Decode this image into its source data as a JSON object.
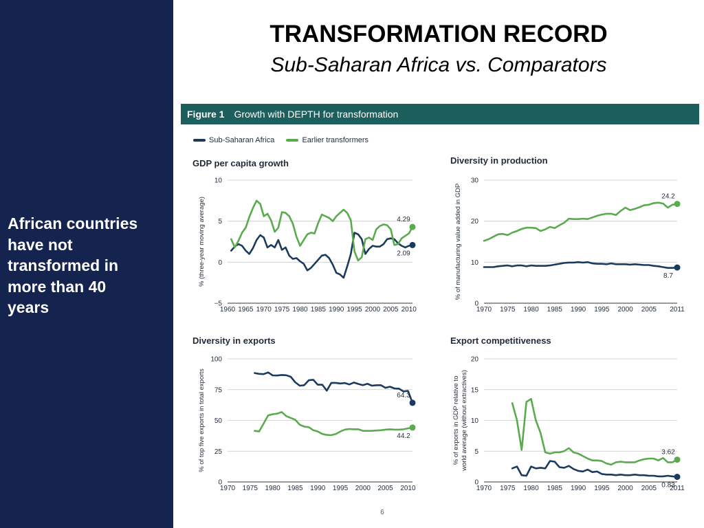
{
  "slide": {
    "title": "TRANSFORMATION RECORD",
    "subtitle": "Sub-Saharan Africa vs. Comparators",
    "sidebar_text": "African countries\nhave not\ntransformed in\nmore than 40\nyears",
    "page_number": "6"
  },
  "figure": {
    "label": "Figure 1",
    "title": "Growth with DEPTH for transformation"
  },
  "legend": {
    "items": [
      {
        "label": "Sub-Saharan Africa",
        "color": "#1b3a5c"
      },
      {
        "label": "Earlier transformers",
        "color": "#5aaa4e"
      }
    ]
  },
  "colors": {
    "ssa": "#1b3a5c",
    "earlier": "#5aaa4e",
    "sidebar": "#15244f",
    "header": "#1c5f5c",
    "grid": "#c8c8c8"
  },
  "chart_data": [
    {
      "type": "line",
      "title": "GDP per capita growth",
      "ylabel": "% (three-year moving average)",
      "xlabel": "",
      "xlim": [
        1960,
        2011
      ],
      "ylim": [
        -5,
        10
      ],
      "xticks": [
        1960,
        1965,
        1970,
        1975,
        1980,
        1985,
        1990,
        1995,
        2000,
        2005,
        2010
      ],
      "yticks": [
        -5,
        0,
        5,
        10
      ],
      "ytick_labels": [
        "−5",
        "0",
        "5",
        "10"
      ],
      "grid": true,
      "series": [
        {
          "key": "ssa",
          "name": "Sub-Saharan Africa",
          "x": [
            1961,
            1962,
            1963,
            1964,
            1965,
            1966,
            1967,
            1968,
            1969,
            1970,
            1971,
            1972,
            1973,
            1974,
            1975,
            1976,
            1977,
            1978,
            1979,
            1980,
            1981,
            1982,
            1983,
            1984,
            1985,
            1986,
            1987,
            1988,
            1989,
            1990,
            1991,
            1992,
            1993,
            1994,
            1995,
            1996,
            1997,
            1998,
            1999,
            2000,
            2001,
            2002,
            2003,
            2004,
            2005,
            2006,
            2007,
            2008,
            2009,
            2010,
            2011
          ],
          "values": [
            1.4,
            1.9,
            2.2,
            2.0,
            1.4,
            1.0,
            1.7,
            2.7,
            3.3,
            3.0,
            1.8,
            2.1,
            1.8,
            2.7,
            1.5,
            1.8,
            0.8,
            0.4,
            0.5,
            0.1,
            -0.2,
            -1.0,
            -0.7,
            -0.2,
            0.3,
            0.8,
            0.9,
            0.5,
            -0.3,
            -1.3,
            -1.5,
            -1.9,
            -0.5,
            1.0,
            3.6,
            3.4,
            2.8,
            1.0,
            1.6,
            2.0,
            1.9,
            1.9,
            2.2,
            2.8,
            2.9,
            2.8,
            2.3,
            2.0,
            1.8,
            2.0,
            2.09
          ],
          "end_label": "2.09"
        },
        {
          "key": "earlier",
          "name": "Earlier transformers",
          "x": [
            1961,
            1962,
            1963,
            1964,
            1965,
            1966,
            1967,
            1968,
            1969,
            1970,
            1971,
            1972,
            1973,
            1974,
            1975,
            1976,
            1977,
            1978,
            1979,
            1980,
            1981,
            1982,
            1983,
            1984,
            1985,
            1986,
            1987,
            1988,
            1989,
            1990,
            1991,
            1992,
            1993,
            1994,
            1995,
            1996,
            1997,
            1998,
            1999,
            2000,
            2001,
            2002,
            2003,
            2004,
            2005,
            2006,
            2007,
            2008,
            2009,
            2010,
            2011
          ],
          "values": [
            2.8,
            1.8,
            2.6,
            3.6,
            4.2,
            5.5,
            6.6,
            7.5,
            7.1,
            5.6,
            5.9,
            5.1,
            3.7,
            4.2,
            6.1,
            6.0,
            5.6,
            4.7,
            3.1,
            2.0,
            2.7,
            3.4,
            3.6,
            3.5,
            4.8,
            5.8,
            5.6,
            5.4,
            5.0,
            5.6,
            6.0,
            6.4,
            6.0,
            5.1,
            1.3,
            0.2,
            0.6,
            2.8,
            3.0,
            2.7,
            4.0,
            4.4,
            4.6,
            4.5,
            4.0,
            2.1,
            2.2,
            2.9,
            3.2,
            3.5,
            4.29
          ],
          "end_label": "4.29"
        }
      ]
    },
    {
      "type": "line",
      "title": "Diversity in production",
      "ylabel": "% of manufacturing value added in GDP",
      "xlabel": "",
      "xlim": [
        1970,
        2011
      ],
      "ylim": [
        0,
        30
      ],
      "xticks": [
        1970,
        1975,
        1980,
        1985,
        1990,
        1995,
        2000,
        2005,
        2011
      ],
      "yticks": [
        0,
        10,
        20,
        30
      ],
      "ytick_labels": [
        "0",
        "10",
        "20",
        "30"
      ],
      "grid": true,
      "series": [
        {
          "key": "ssa",
          "name": "Sub-Saharan Africa",
          "x": [
            1970,
            1971,
            1972,
            1973,
            1974,
            1975,
            1976,
            1977,
            1978,
            1979,
            1980,
            1981,
            1982,
            1983,
            1984,
            1985,
            1986,
            1987,
            1988,
            1989,
            1990,
            1991,
            1992,
            1993,
            1994,
            1995,
            1996,
            1997,
            1998,
            1999,
            2000,
            2001,
            2002,
            2003,
            2004,
            2005,
            2006,
            2007,
            2008,
            2009,
            2010,
            2011
          ],
          "values": [
            8.8,
            8.8,
            8.8,
            9.0,
            9.1,
            9.2,
            9.0,
            9.2,
            9.2,
            9.0,
            9.2,
            9.1,
            9.1,
            9.1,
            9.2,
            9.4,
            9.6,
            9.8,
            9.9,
            9.9,
            10.0,
            9.9,
            10.0,
            9.7,
            9.6,
            9.6,
            9.5,
            9.7,
            9.5,
            9.5,
            9.5,
            9.4,
            9.5,
            9.4,
            9.3,
            9.3,
            9.1,
            9.0,
            8.8,
            8.6,
            8.6,
            8.7
          ],
          "end_label": "8.7"
        },
        {
          "key": "earlier",
          "name": "Earlier transformers",
          "x": [
            1970,
            1971,
            1972,
            1973,
            1974,
            1975,
            1976,
            1977,
            1978,
            1979,
            1980,
            1981,
            1982,
            1983,
            1984,
            1985,
            1986,
            1987,
            1988,
            1989,
            1990,
            1991,
            1992,
            1993,
            1994,
            1995,
            1996,
            1997,
            1998,
            1999,
            2000,
            2001,
            2002,
            2003,
            2004,
            2005,
            2006,
            2007,
            2008,
            2009,
            2010,
            2011
          ],
          "values": [
            15.2,
            15.6,
            16.2,
            16.8,
            16.9,
            16.6,
            17.2,
            17.6,
            18.1,
            18.4,
            18.4,
            18.3,
            17.6,
            18.0,
            18.6,
            18.3,
            19.0,
            19.6,
            20.6,
            20.5,
            20.5,
            20.6,
            20.5,
            20.9,
            21.3,
            21.6,
            21.8,
            21.8,
            21.5,
            22.5,
            23.3,
            22.7,
            23.0,
            23.4,
            23.9,
            24.0,
            24.4,
            24.5,
            24.3,
            23.3,
            24.0,
            24.2
          ],
          "end_label": "24.2"
        }
      ]
    },
    {
      "type": "line",
      "title": "Diversity in exports",
      "ylabel": "% of top five exports in total exports",
      "xlabel": "",
      "xlim": [
        1970,
        2011
      ],
      "ylim": [
        0,
        100
      ],
      "xticks": [
        1970,
        1975,
        1980,
        1985,
        1990,
        1995,
        2000,
        2005,
        2010
      ],
      "yticks": [
        0,
        25,
        50,
        75,
        100
      ],
      "ytick_labels": [
        "0",
        "25",
        "50",
        "75",
        "100"
      ],
      "grid": true,
      "series": [
        {
          "key": "ssa",
          "name": "Sub-Saharan Africa",
          "x": [
            1976,
            1977,
            1978,
            1979,
            1980,
            1981,
            1982,
            1983,
            1984,
            1985,
            1986,
            1987,
            1988,
            1989,
            1990,
            1991,
            1992,
            1993,
            1994,
            1995,
            1996,
            1997,
            1998,
            1999,
            2000,
            2001,
            2002,
            2003,
            2004,
            2005,
            2006,
            2007,
            2008,
            2009,
            2010,
            2011
          ],
          "values": [
            88.5,
            87.8,
            87.6,
            89.0,
            86.6,
            86.5,
            86.9,
            86.7,
            85.5,
            81.0,
            78.2,
            78.6,
            82.6,
            83.0,
            79.0,
            79.0,
            74.2,
            80.5,
            80.5,
            80.0,
            80.4,
            79.2,
            80.8,
            79.6,
            78.6,
            79.8,
            78.2,
            78.6,
            78.6,
            76.5,
            77.4,
            76.0,
            75.8,
            73.5,
            74.0,
            64.3
          ],
          "end_label": "64.3"
        },
        {
          "key": "earlier",
          "name": "Earlier transformers",
          "x": [
            1976,
            1977,
            1978,
            1979,
            1980,
            1981,
            1982,
            1983,
            1984,
            1985,
            1986,
            1987,
            1988,
            1989,
            1990,
            1991,
            1992,
            1993,
            1994,
            1995,
            1996,
            1997,
            1998,
            1999,
            2000,
            2001,
            2002,
            2003,
            2004,
            2005,
            2006,
            2007,
            2008,
            2009,
            2010,
            2011
          ],
          "values": [
            41.5,
            41.0,
            47.5,
            54.0,
            55.0,
            55.5,
            56.8,
            53.5,
            52.0,
            50.5,
            46.5,
            45.0,
            44.5,
            42.0,
            41.0,
            39.0,
            38.2,
            38.0,
            39.0,
            41.0,
            42.5,
            43.0,
            42.8,
            42.8,
            41.5,
            41.5,
            41.5,
            41.8,
            42.0,
            42.5,
            42.8,
            42.5,
            42.5,
            42.8,
            43.5,
            44.2
          ],
          "end_label": "44.2"
        }
      ]
    },
    {
      "type": "line",
      "title": "Export competitiveness",
      "ylabel": "% of exports in GDP relative to world average (without extractives)",
      "xlabel": "",
      "xlim": [
        1970,
        2011
      ],
      "ylim": [
        0,
        20
      ],
      "xticks": [
        1970,
        1975,
        1980,
        1985,
        1990,
        1995,
        2000,
        2005,
        2011
      ],
      "yticks": [
        0,
        5,
        10,
        15,
        20
      ],
      "ytick_labels": [
        "0",
        "5",
        "10",
        "15",
        "20"
      ],
      "grid": true,
      "series": [
        {
          "key": "ssa",
          "name": "Sub-Saharan Africa",
          "x": [
            1976,
            1977,
            1978,
            1979,
            1980,
            1981,
            1982,
            1983,
            1984,
            1985,
            1986,
            1987,
            1988,
            1989,
            1990,
            1991,
            1992,
            1993,
            1994,
            1995,
            1996,
            1997,
            1998,
            1999,
            2000,
            2001,
            2002,
            2003,
            2004,
            2005,
            2006,
            2007,
            2008,
            2009,
            2010,
            2011
          ],
          "values": [
            2.2,
            2.5,
            1.1,
            1.0,
            2.5,
            2.2,
            2.3,
            2.2,
            3.4,
            3.3,
            2.4,
            2.3,
            2.6,
            2.1,
            1.8,
            1.7,
            2.0,
            1.6,
            1.7,
            1.3,
            1.2,
            1.2,
            1.1,
            1.2,
            1.1,
            1.1,
            1.2,
            1.1,
            1.1,
            1.0,
            1.0,
            0.9,
            0.9,
            1.0,
            0.9,
            0.83
          ],
          "end_label": "0.83"
        },
        {
          "key": "earlier",
          "name": "Earlier transformers",
          "x": [
            1976,
            1977,
            1978,
            1979,
            1980,
            1981,
            1982,
            1983,
            1984,
            1985,
            1986,
            1987,
            1988,
            1989,
            1990,
            1991,
            1992,
            1993,
            1994,
            1995,
            1996,
            1997,
            1998,
            1999,
            2000,
            2001,
            2002,
            2003,
            2004,
            2005,
            2006,
            2007,
            2008,
            2009,
            2010,
            2011
          ],
          "values": [
            12.8,
            10.0,
            5.2,
            13.0,
            13.5,
            10.0,
            8.0,
            4.8,
            4.6,
            4.8,
            4.8,
            5.0,
            5.5,
            4.8,
            4.6,
            4.2,
            3.8,
            3.5,
            3.5,
            3.4,
            3.0,
            2.8,
            3.2,
            3.3,
            3.2,
            3.2,
            3.2,
            3.5,
            3.7,
            3.8,
            3.8,
            3.5,
            3.9,
            3.2,
            3.2,
            3.62
          ],
          "end_label": "3.62"
        }
      ]
    }
  ]
}
